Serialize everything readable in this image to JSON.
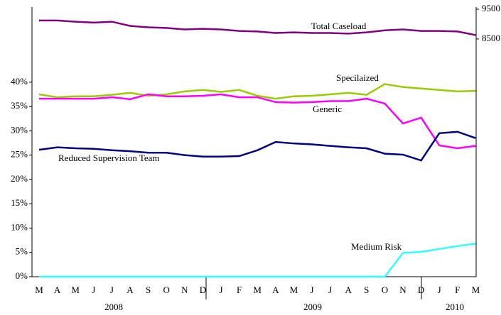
{
  "chart_data": {
    "type": "line",
    "categories": [
      "M",
      "A",
      "M",
      "J",
      "J",
      "A",
      "S",
      "O",
      "N",
      "D",
      "J",
      "F",
      "M",
      "A",
      "M",
      "J",
      "J",
      "A",
      "S",
      "O",
      "N",
      "D",
      "J",
      "F",
      "M"
    ],
    "years": [
      "2008",
      "2009",
      "2010"
    ],
    "ylim": [
      0,
      55
    ],
    "yticks": [
      {
        "value": 0,
        "label": "0%"
      },
      {
        "value": 5,
        "label": "5%"
      },
      {
        "value": 10,
        "label": "10%"
      },
      {
        "value": 15,
        "label": "15%"
      },
      {
        "value": 20,
        "label": "20%"
      },
      {
        "value": 25,
        "label": "25%"
      },
      {
        "value": 30,
        "label": "30%"
      },
      {
        "value": 35,
        "label": "35%"
      },
      {
        "value": 40,
        "label": "40%"
      }
    ],
    "y2lim": [
      500,
      9500
    ],
    "y2ticks": [
      8500,
      9500
    ],
    "series": [
      {
        "name": "Total Caseload",
        "color": "#800080",
        "axis": "y2",
        "values": [
          9120,
          9120,
          9080,
          9050,
          9080,
          8940,
          8890,
          8870,
          8820,
          8840,
          8820,
          8770,
          8750,
          8700,
          8720,
          8700,
          8700,
          8680,
          8720,
          8790,
          8820,
          8770,
          8770,
          8750,
          8630
        ]
      },
      {
        "name": "Specilaized",
        "color": "#99cc00",
        "values": [
          37.5,
          36.9,
          37.1,
          37.1,
          37.4,
          37.8,
          37.2,
          37.5,
          38.1,
          38.4,
          38.0,
          38.4,
          37.2,
          36.6,
          37.1,
          37.2,
          37.5,
          37.8,
          37.4,
          39.6,
          39.0,
          38.7,
          38.4,
          38.1,
          38.2
        ]
      },
      {
        "name": "Generic",
        "color": "#ff00ff",
        "values": [
          36.6,
          36.6,
          36.6,
          36.6,
          36.9,
          36.5,
          37.5,
          37.1,
          37.1,
          37.2,
          37.5,
          36.9,
          36.9,
          35.9,
          35.8,
          35.9,
          36.1,
          36.1,
          36.6,
          35.6,
          31.5,
          32.7,
          27.0,
          26.4,
          26.9
        ]
      },
      {
        "name": "Reduced Supervision Team",
        "color": "#000080",
        "values": [
          26.1,
          26.6,
          26.4,
          26.3,
          26.0,
          25.8,
          25.5,
          25.5,
          25.0,
          24.7,
          24.7,
          24.8,
          26.0,
          27.7,
          27.4,
          27.2,
          26.9,
          26.6,
          26.4,
          25.3,
          25.1,
          23.9,
          29.5,
          29.8,
          28.5
        ]
      },
      {
        "name": "Medium Risk",
        "color": "#33ffff",
        "values": [
          0,
          0,
          0,
          0,
          0,
          0,
          0,
          0,
          0,
          0,
          0,
          0,
          0,
          0,
          0,
          0,
          0,
          0,
          0,
          0,
          4.9,
          5.1,
          5.7,
          6.3,
          6.8
        ]
      }
    ]
  }
}
